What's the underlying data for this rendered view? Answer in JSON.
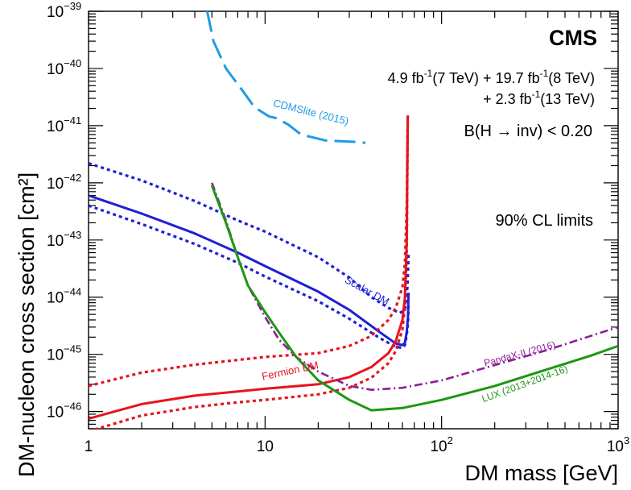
{
  "chart_data": {
    "type": "line",
    "title": "",
    "xlabel": "DM mass [GeV]",
    "ylabel": "DM-nucleon cross section [cm²]",
    "xscale": "log",
    "yscale": "log",
    "xlim": [
      1,
      1000
    ],
    "ylim": [
      5e-47,
      1e-39
    ],
    "x_ticks": [
      {
        "value": 1,
        "label": "1"
      },
      {
        "value": 10,
        "label": "10"
      },
      {
        "value": 100,
        "base": "10",
        "exp": "2"
      },
      {
        "value": 1000,
        "base": "10",
        "exp": "3"
      }
    ],
    "y_ticks": [
      {
        "value": 1e-46,
        "base": "10",
        "exp": "−46"
      },
      {
        "value": 1e-45,
        "base": "10",
        "exp": "−45"
      },
      {
        "value": 1e-44,
        "base": "10",
        "exp": "−44"
      },
      {
        "value": 1e-43,
        "base": "10",
        "exp": "−43"
      },
      {
        "value": 1e-42,
        "base": "10",
        "exp": "−42"
      },
      {
        "value": 1e-41,
        "base": "10",
        "exp": "−41"
      },
      {
        "value": 1e-40,
        "base": "10",
        "exp": "−40"
      },
      {
        "value": 1e-39,
        "base": "10",
        "exp": "−39"
      }
    ],
    "grid": false,
    "annotations": {
      "experiment": "CMS",
      "lumi_line1": {
        "a": "4.9 fb",
        "a_sup": "-1",
        "b": "(7 TeV) + 19.7 fb",
        "b_sup": "-1",
        "c": "(8 TeV)"
      },
      "lumi_line2": {
        "a": "+ 2.3 fb",
        "a_sup": "-1",
        "b": "(13 TeV)"
      },
      "branching": "B(H → inv) < 0.20",
      "cl": "90% CL limits"
    },
    "series": [
      {
        "name": "CDMSlite (2015)",
        "color": "#1e9be6",
        "style": "dashed",
        "points": [
          [
            4.7,
            1e-39
          ],
          [
            5.1,
            3e-40
          ],
          [
            6,
            1e-40
          ],
          [
            7.5,
            4e-41
          ],
          [
            8.7,
            2.1e-41
          ],
          [
            10.5,
            1.45e-41
          ],
          [
            11.6,
            1.35e-41
          ],
          [
            13.5,
            1.05e-41
          ],
          [
            16,
            7e-42
          ],
          [
            22,
            5.5e-42
          ],
          [
            32,
            5.2e-42
          ],
          [
            37,
            5e-42
          ]
        ]
      },
      {
        "name": "Scalar DM",
        "color": "#1f1fd6",
        "style": "solid",
        "points": [
          [
            1,
            6e-43
          ],
          [
            2,
            2.9e-43
          ],
          [
            4,
            1.3e-43
          ],
          [
            7,
            6e-44
          ],
          [
            10,
            3.5e-44
          ],
          [
            20,
            1.25e-44
          ],
          [
            30,
            6e-45
          ],
          [
            45,
            2.4e-45
          ],
          [
            55,
            1.55e-45
          ],
          [
            60,
            1.45e-45
          ],
          [
            62,
            1.6e-45
          ],
          [
            63.5,
            2.5e-45
          ],
          [
            64.5,
            4.5e-45
          ],
          [
            65,
            1.2e-44
          ]
        ]
      },
      {
        "name": "",
        "color": "#1f1fd6",
        "style": "dotted",
        "points": [
          [
            1,
            2.2e-42
          ],
          [
            2,
            1.1e-42
          ],
          [
            4,
            4.8e-43
          ],
          [
            7,
            2.2e-43
          ],
          [
            10,
            1.4e-43
          ],
          [
            20,
            5e-44
          ],
          [
            30,
            2.2e-44
          ],
          [
            40,
            1e-44
          ],
          [
            50,
            6.5e-45
          ],
          [
            58,
            5.3e-45
          ],
          [
            62,
            6e-45
          ],
          [
            64,
            1.5e-44
          ],
          [
            65,
            5.5e-44
          ]
        ]
      },
      {
        "name": "",
        "color": "#1f1fd6",
        "style": "dotted",
        "points": [
          [
            1,
            4e-43
          ],
          [
            2,
            1.9e-43
          ],
          [
            4,
            8.5e-44
          ],
          [
            7,
            4e-44
          ],
          [
            10,
            2.3e-44
          ],
          [
            20,
            8.5e-45
          ],
          [
            30,
            4.2e-45
          ],
          [
            45,
            1.9e-45
          ],
          [
            55,
            1.35e-45
          ],
          [
            60,
            1.3e-45
          ],
          [
            62,
            1.45e-45
          ],
          [
            63.5,
            2.2e-45
          ],
          [
            64.5,
            3.5e-45
          ],
          [
            65,
            7e-45
          ]
        ]
      },
      {
        "name": "Fermion DM",
        "color": "#e6141e",
        "style": "solid",
        "points": [
          [
            1,
            7.5e-47
          ],
          [
            2,
            1.35e-46
          ],
          [
            4,
            1.9e-46
          ],
          [
            7,
            2.25e-46
          ],
          [
            10,
            2.5e-46
          ],
          [
            20,
            3e-46
          ],
          [
            30,
            4e-46
          ],
          [
            40,
            6e-46
          ],
          [
            50,
            1.05e-45
          ],
          [
            55,
            1.7e-45
          ],
          [
            60,
            4e-45
          ],
          [
            62,
            1e-44
          ],
          [
            63.5,
            1e-43
          ],
          [
            64.3,
            1.5e-41
          ]
        ]
      },
      {
        "name": "",
        "color": "#e6141e",
        "style": "dotted",
        "points": [
          [
            1,
            2.8e-46
          ],
          [
            2,
            4.8e-46
          ],
          [
            4,
            6.6e-46
          ],
          [
            7,
            8e-46
          ],
          [
            10,
            9e-46
          ],
          [
            20,
            1.05e-45
          ],
          [
            30,
            1.4e-45
          ],
          [
            40,
            2.1e-45
          ],
          [
            50,
            4e-45
          ],
          [
            55,
            6.5e-45
          ],
          [
            60,
            1.5e-44
          ],
          [
            62,
            4e-44
          ],
          [
            63.5,
            4e-43
          ],
          [
            64.3,
            1.5e-41
          ]
        ]
      },
      {
        "name": "",
        "color": "#e6141e",
        "style": "dotted",
        "points": [
          [
            1,
            4.5e-47
          ],
          [
            2,
            8.5e-47
          ],
          [
            4,
            1.2e-46
          ],
          [
            7,
            1.45e-46
          ],
          [
            10,
            1.6e-46
          ],
          [
            20,
            2e-46
          ],
          [
            30,
            2.6e-46
          ],
          [
            40,
            3.9e-46
          ],
          [
            50,
            7e-46
          ],
          [
            55,
            1.15e-45
          ],
          [
            60,
            2.7e-45
          ],
          [
            62,
            7e-45
          ],
          [
            63.5,
            7e-44
          ],
          [
            64.3,
            1.5e-41
          ]
        ]
      },
      {
        "name": "PandaX-II (2016)",
        "color": "#8c1e96",
        "style": "dashdot",
        "points": [
          [
            5,
            1e-42
          ],
          [
            6,
            2.2e-43
          ],
          [
            7,
            5e-44
          ],
          [
            8,
            1.6e-44
          ],
          [
            10,
            4.5e-45
          ],
          [
            12,
            1.8e-45
          ],
          [
            15,
            9e-46
          ],
          [
            20,
            5e-46
          ],
          [
            30,
            2.8e-46
          ],
          [
            40,
            2.4e-46
          ],
          [
            60,
            2.6e-46
          ],
          [
            100,
            3.5e-46
          ],
          [
            200,
            6.5e-46
          ],
          [
            400,
            1.2e-45
          ],
          [
            700,
            2.1e-45
          ],
          [
            1000,
            3e-45
          ]
        ]
      },
      {
        "name": "LUX (2013+2014-16)",
        "color": "#1e9614",
        "style": "solid",
        "points": [
          [
            5,
            9e-43
          ],
          [
            6,
            2e-43
          ],
          [
            7,
            5e-44
          ],
          [
            8,
            1.6e-44
          ],
          [
            10,
            5.5e-45
          ],
          [
            12,
            2.4e-45
          ],
          [
            15,
            9e-46
          ],
          [
            20,
            3.5e-46
          ],
          [
            30,
            1.6e-46
          ],
          [
            40,
            1.05e-46
          ],
          [
            60,
            1.15e-46
          ],
          [
            100,
            1.6e-46
          ],
          [
            200,
            2.8e-46
          ],
          [
            400,
            5.5e-46
          ],
          [
            700,
            9.5e-46
          ],
          [
            1000,
            1.4e-45
          ]
        ]
      }
    ],
    "series_labels": [
      {
        "series": 0,
        "text": "CDMSlite (2015)"
      },
      {
        "series": 1,
        "text": "Scalar DM"
      },
      {
        "series": 4,
        "text": "Fermion DM"
      },
      {
        "series": 7,
        "text": "PandaX-II (2016)"
      },
      {
        "series": 8,
        "text": "LUX (2013+2014-16)"
      }
    ]
  }
}
